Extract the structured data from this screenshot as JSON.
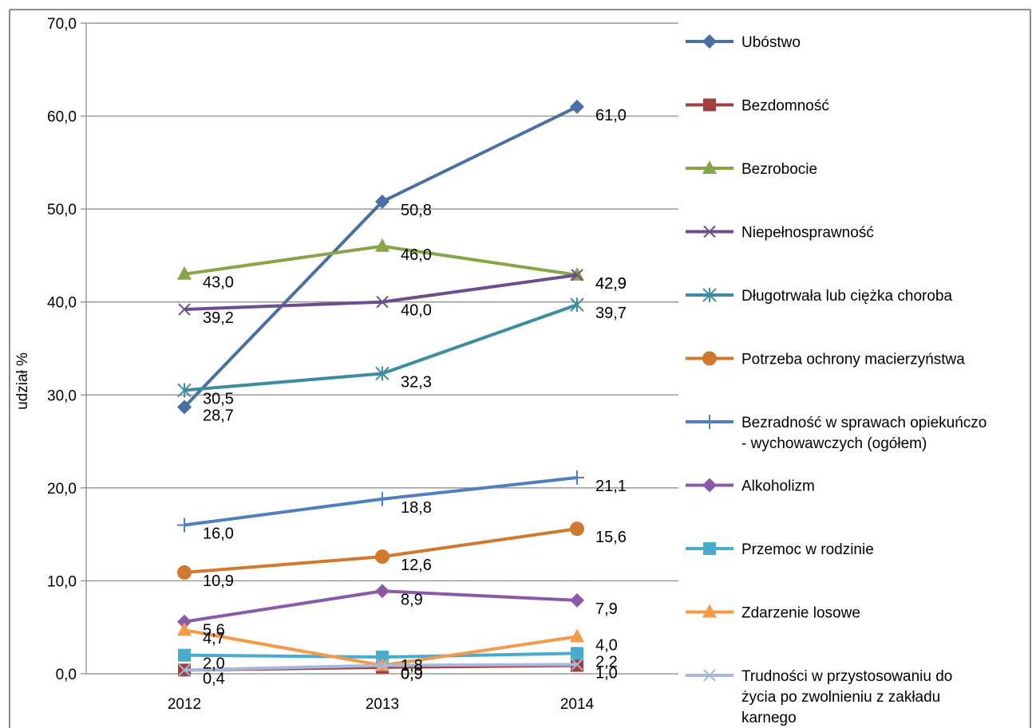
{
  "chart_data": {
    "type": "line",
    "title": "",
    "xlabel": "",
    "ylabel": "udział %",
    "ylim": [
      0,
      70
    ],
    "yticks": [
      "0,0",
      "10,0",
      "20,0",
      "30,0",
      "40,0",
      "50,0",
      "60,0",
      "70,0"
    ],
    "categories": [
      "2012",
      "2013",
      "2014"
    ],
    "grid": "horizontal",
    "legend": "right",
    "series": [
      {
        "name": "Ubóstwo",
        "values": [
          28.7,
          50.8,
          61.0
        ],
        "labels": [
          "28,7",
          "50,8",
          "61,0"
        ],
        "color": "#4a6fa5",
        "marker": "diamond"
      },
      {
        "name": "Bezdomność",
        "values": [
          0.4,
          0.7,
          0.9
        ],
        "labels": [
          "",
          "",
          ""
        ],
        "color": "#a0413f",
        "marker": "square"
      },
      {
        "name": "Bezrobocie",
        "values": [
          43.0,
          46.0,
          42.9
        ],
        "labels": [
          "43,0",
          "46,0",
          "42,9"
        ],
        "color": "#86a546",
        "marker": "triangle"
      },
      {
        "name": "Niepełnosprawność",
        "values": [
          39.2,
          40.0,
          42.9
        ],
        "labels": [
          "39,2",
          "40,0",
          "42,9"
        ],
        "color": "#6e4d8d",
        "marker": "x"
      },
      {
        "name": "Długotrwała lub ciężka choroba",
        "values": [
          30.5,
          32.3,
          39.7
        ],
        "labels": [
          "30,5",
          "32,3",
          "39,7"
        ],
        "color": "#3c8d9f",
        "marker": "star"
      },
      {
        "name": "Potrzeba ochrony macierzyństwa",
        "values": [
          10.9,
          12.6,
          15.6
        ],
        "labels": [
          "10,9",
          "12,6",
          "15,6"
        ],
        "color": "#d1782f",
        "marker": "circle"
      },
      {
        "name": "Bezradność w sprawach opiekuńczo - wychowawczych (ogółem)",
        "legend_lines": [
          "Bezradność w sprawach opiekuńczo",
          "- wychowawczych (ogółem)"
        ],
        "values": [
          16.0,
          18.8,
          21.1
        ],
        "labels": [
          "16,0",
          "18,8",
          "21,1"
        ],
        "color": "#4f7fc0",
        "marker": "plus"
      },
      {
        "name": "Alkoholizm",
        "values": [
          5.6,
          8.9,
          7.9
        ],
        "labels": [
          "5,6",
          "8,9",
          "7,9"
        ],
        "color": "#8a5aa8",
        "marker": "diamond"
      },
      {
        "name": "Przemoc w rodzinie",
        "values": [
          2.0,
          1.8,
          2.2
        ],
        "labels": [
          "2,0",
          "1,8",
          "2,2"
        ],
        "color": "#4aaccc",
        "marker": "square"
      },
      {
        "name": "Zdarzenie losowe",
        "values": [
          4.7,
          0.9,
          4.0
        ],
        "labels": [
          "4,7",
          "0,9",
          "4,0"
        ],
        "color": "#f59a4a",
        "marker": "triangle"
      },
      {
        "name": "Trudności w przystosowaniu do życia po zwolnieniu z zakładu karnego",
        "legend_lines": [
          "Trudności w przystosowaniu do",
          "życia po zwolnieniu z zakładu",
          "karnego"
        ],
        "values": [
          0.4,
          0.9,
          1.0
        ],
        "labels": [
          "0,4",
          "0,9",
          "1,0"
        ],
        "color": "#a6b8dc",
        "marker": "x"
      }
    ]
  }
}
